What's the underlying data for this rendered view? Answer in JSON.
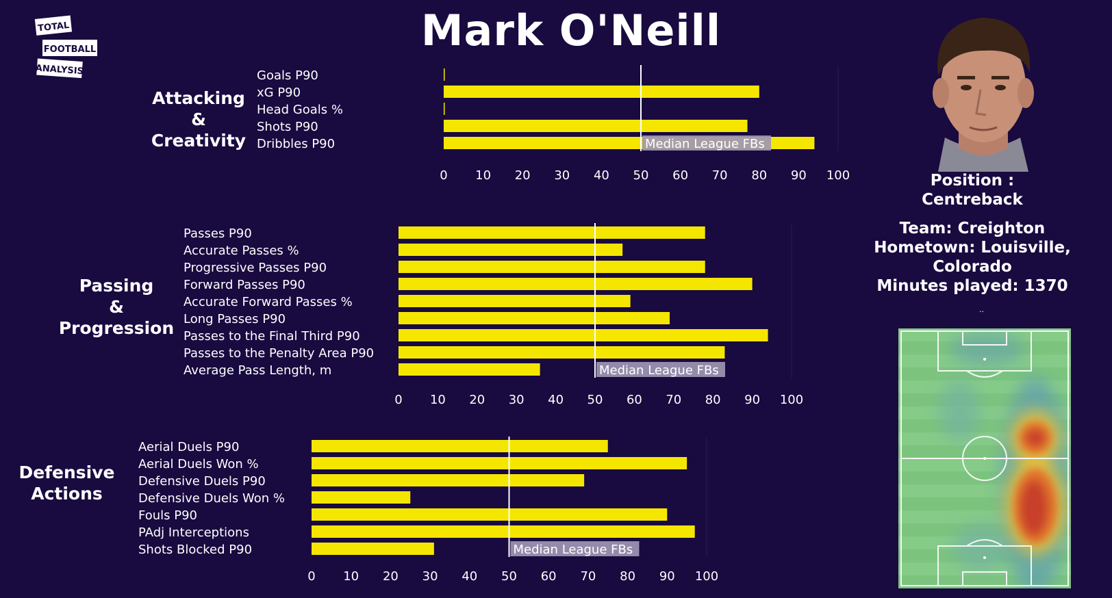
{
  "title": "Mark O'Neill",
  "logo": {
    "lines": [
      "TOTAL",
      "FOOTBALL",
      "ANALYSIS"
    ]
  },
  "player": {
    "position_label": "Position :",
    "position": "Centreback",
    "team": "Team: Creighton",
    "hometown_1": "Hometown: Louisville,",
    "hometown_2": "Colorado",
    "minutes": "Minutes played: 1370",
    "note": ".."
  },
  "colors": {
    "background": "#190a40",
    "bar": "#f5e600",
    "median_line": "#ffffff",
    "median_label_bg": "#9e97b3"
  },
  "chart_data": [
    {
      "type": "bar",
      "orientation": "horizontal",
      "section_title": [
        "Attacking",
        "&",
        "Creativity"
      ],
      "categories": [
        "Goals P90",
        "xG P90",
        "Head Goals %",
        "Shots P90",
        "Dribbles P90"
      ],
      "values": [
        0,
        80,
        0,
        77,
        94
      ],
      "xlim": [
        0,
        100
      ],
      "xticks": [
        0,
        10,
        20,
        30,
        40,
        50,
        60,
        70,
        80,
        90,
        100
      ],
      "median": 50,
      "median_label": "Median League FBs"
    },
    {
      "type": "bar",
      "orientation": "horizontal",
      "section_title": [
        "Passing",
        "&",
        "Progression"
      ],
      "categories": [
        "Passes P90",
        "Accurate Passes %",
        "Progressive Passes P90",
        "Forward Passes P90",
        "Accurate Forward Passes %",
        "Long Passes P90",
        "Passes to the Final Third P90",
        "Passes to the Penalty Area P90",
        "Average Pass Length, m"
      ],
      "values": [
        78,
        57,
        78,
        90,
        59,
        69,
        94,
        83,
        36
      ],
      "xlim": [
        0,
        100
      ],
      "xticks": [
        0,
        10,
        20,
        30,
        40,
        50,
        60,
        70,
        80,
        90,
        100
      ],
      "median": 50,
      "median_label": "Median League FBs"
    },
    {
      "type": "bar",
      "orientation": "horizontal",
      "section_title": [
        "Defensive",
        "Actions"
      ],
      "categories": [
        "Aerial Duels P90",
        "Aerial Duels Won %",
        "Defensive Duels P90",
        "Defensive Duels Won %",
        "Fouls P90",
        "PAdj Interceptions",
        "Shots Blocked P90"
      ],
      "values": [
        75,
        95,
        69,
        25,
        90,
        97,
        31
      ],
      "xlim": [
        0,
        100
      ],
      "xticks": [
        0,
        10,
        20,
        30,
        40,
        50,
        60,
        70,
        80,
        90,
        100
      ],
      "median": 50,
      "median_label": "Median League FBs"
    }
  ]
}
